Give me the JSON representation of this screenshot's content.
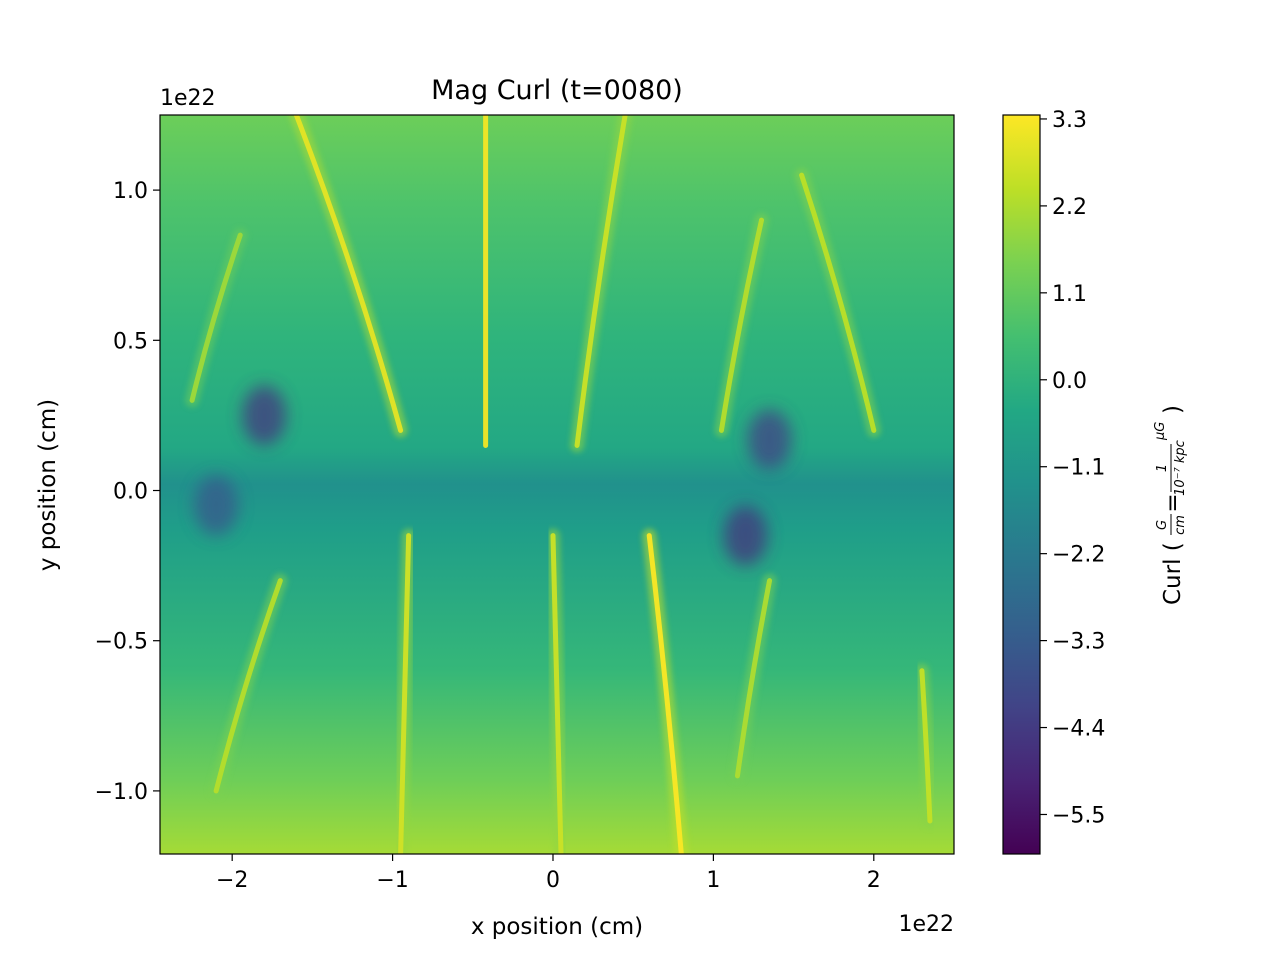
{
  "chart_data": {
    "type": "heatmap",
    "title": "Mag Curl (t=0080)",
    "xlabel": "x position (cm)",
    "ylabel": "y position (cm)",
    "x_offset_text": "1e22",
    "y_offset_text": "1e22",
    "xlim": [
      -2.45,
      2.5
    ],
    "ylim": [
      -1.21,
      1.25
    ],
    "x_ticks": [
      -2,
      -1,
      0,
      1,
      2
    ],
    "x_tick_labels": [
      "−2",
      "−1",
      "0",
      "1",
      "2"
    ],
    "y_ticks": [
      -1.0,
      -0.5,
      0.0,
      0.5,
      1.0
    ],
    "y_tick_labels": [
      "−1.0",
      "−0.5",
      "0.0",
      "0.5",
      "1.0"
    ],
    "colorbar": {
      "label_prefix": "Curl (",
      "label_suffix": ")",
      "frac1_num": "G",
      "frac1_den": "cm",
      "equals": "=",
      "frac2_num": "1",
      "frac2_den": "10⁻⁷ kpc",
      "frac3_num": "μG",
      "range": [
        -6.0,
        3.35
      ],
      "ticks": [
        3.3,
        2.2,
        1.1,
        0.0,
        -1.1,
        -2.2,
        -3.3,
        -4.4,
        -5.5
      ],
      "tick_labels": [
        "3.3",
        "2.2",
        "1.1",
        "0.0",
        "−1.1",
        "−2.2",
        "−3.3",
        "−4.4",
        "−5.5"
      ],
      "colormap": "viridis"
    },
    "field_features": {
      "background_level": -0.9,
      "filaments": [
        {
          "x_top": -1.6,
          "x_bottom": -0.95,
          "y_top": 1.25,
          "y_bottom": 0.2,
          "value": 3.0
        },
        {
          "x_top": -0.42,
          "x_bottom": -0.42,
          "y_top": 1.25,
          "y_bottom": 0.15,
          "value": 3.2
        },
        {
          "x_top": 0.45,
          "x_bottom": 0.15,
          "y_top": 1.25,
          "y_bottom": 0.15,
          "value": 2.6
        },
        {
          "x_top": 1.3,
          "x_bottom": 1.05,
          "y_top": 0.9,
          "y_bottom": 0.2,
          "value": 2.3
        },
        {
          "x_top": 1.55,
          "x_bottom": 2.0,
          "y_top": 1.05,
          "y_bottom": 0.2,
          "value": 2.4
        },
        {
          "x_top": -1.95,
          "x_bottom": -2.25,
          "y_top": 0.85,
          "y_bottom": 0.3,
          "value": 2.0
        },
        {
          "x_top": -0.9,
          "x_bottom": -0.95,
          "y_top": -0.15,
          "y_bottom": -1.21,
          "value": 2.7
        },
        {
          "x_top": 0.0,
          "x_bottom": 0.05,
          "y_top": -0.15,
          "y_bottom": -1.21,
          "value": 2.6
        },
        {
          "x_top": 0.6,
          "x_bottom": 0.8,
          "y_top": -0.15,
          "y_bottom": -1.21,
          "value": 3.3
        },
        {
          "x_top": -1.7,
          "x_bottom": -2.1,
          "y_top": -0.3,
          "y_bottom": -1.0,
          "value": 2.3
        },
        {
          "x_top": 1.35,
          "x_bottom": 1.15,
          "y_top": -0.3,
          "y_bottom": -0.95,
          "value": 2.2
        },
        {
          "x_top": 2.3,
          "x_bottom": 2.35,
          "y_top": -0.6,
          "y_bottom": -1.1,
          "value": 2.5
        }
      ],
      "low_spots": [
        {
          "x": -1.8,
          "y": 0.25,
          "value": -4.5
        },
        {
          "x": 1.35,
          "y": 0.17,
          "value": -4.2
        },
        {
          "x": 1.2,
          "y": -0.15,
          "value": -4.6
        },
        {
          "x": -2.1,
          "y": -0.05,
          "value": -3.4
        }
      ]
    }
  }
}
